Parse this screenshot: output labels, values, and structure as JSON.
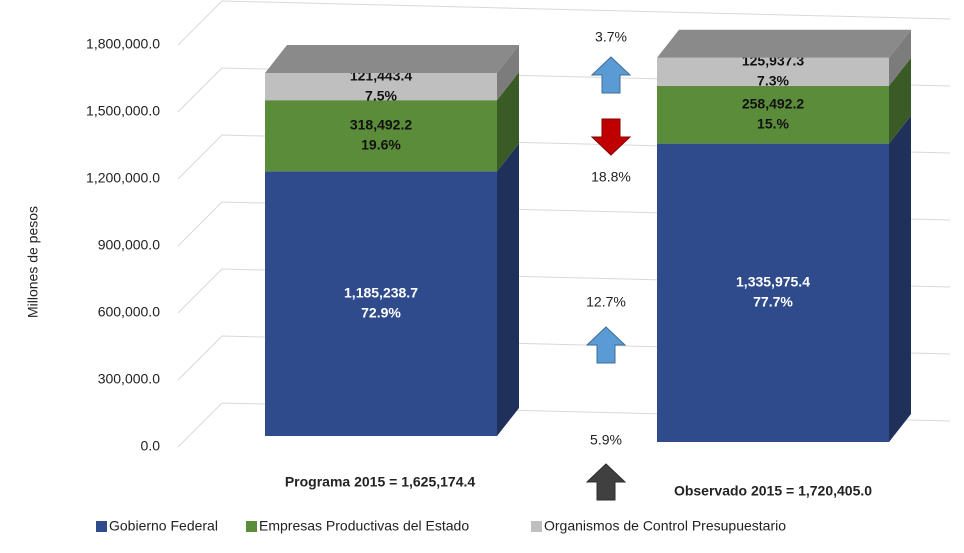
{
  "chart_data": {
    "type": "bar3d_stacked",
    "y_axis_label": "Millones de pesos",
    "categories": [
      "Programa 2015 = 1,625,174.4",
      "Observado 2015 = 1,720,405.0"
    ],
    "series": [
      {
        "name": "Gobierno Federal",
        "color": "#2f4b8c",
        "values": [
          1185238.7,
          1335975.4
        ],
        "value_labels": [
          "1,185,238.7",
          "1,335,975.4"
        ],
        "share_labels": [
          "72.9%",
          "77.7%"
        ]
      },
      {
        "name": "Empresas Productivas del Estado",
        "color": "#5b8c3a",
        "values": [
          318492.2,
          258492.2
        ],
        "value_labels": [
          "318,492.2",
          "258,492.2"
        ],
        "share_labels": [
          "19.6%",
          "15.%"
        ]
      },
      {
        "name": "Organismos de Control Presupuestario",
        "color": "#bfbfbf",
        "values": [
          121443.4,
          125937.3
        ],
        "value_labels": [
          "121,443.4",
          "125,937.3"
        ],
        "share_labels": [
          "7.5%",
          "7.3%"
        ]
      }
    ],
    "ylim": [
      0,
      1800000
    ],
    "yticks": [
      {
        "value": 0,
        "label": "0.0"
      },
      {
        "value": 300000,
        "label": "300,000.0"
      },
      {
        "value": 600000,
        "label": "600,000.0"
      },
      {
        "value": 900000,
        "label": "900,000.0"
      },
      {
        "value": 1200000,
        "label": "1,200,000.0"
      },
      {
        "value": 1500000,
        "label": "1,500,000.0"
      },
      {
        "value": 1800000,
        "label": "1,800,000.0"
      }
    ],
    "grid": true,
    "legend": "bottom",
    "changes": [
      {
        "label": "3.7%",
        "direction": "up",
        "color": "#5b9bd5"
      },
      {
        "label": "18.8%",
        "direction": "down",
        "color": "#c00000"
      },
      {
        "label": "12.7%",
        "direction": "up",
        "color": "#5b9bd5"
      },
      {
        "label": "5.9%",
        "direction": "up",
        "color": "#404040"
      }
    ]
  }
}
